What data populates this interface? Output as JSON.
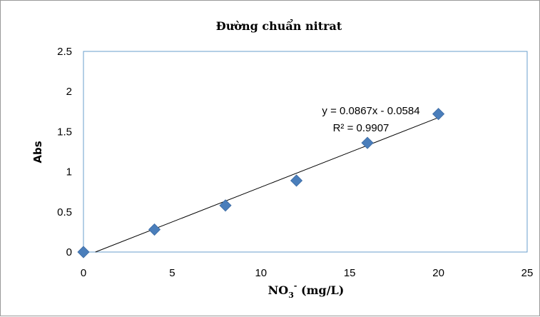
{
  "chart_data": {
    "type": "scatter",
    "title": "Đường chuẩn nitrat",
    "xlabel_main": "NO",
    "xlabel_sub": "3",
    "xlabel_sup": "-",
    "xlabel_rest": " (mg/L)",
    "ylabel": "Abs",
    "xlim": [
      0,
      25
    ],
    "ylim": [
      0,
      2.5
    ],
    "x_ticks": [
      0,
      5,
      10,
      15,
      20,
      25
    ],
    "y_ticks": [
      0,
      0.5,
      1,
      1.5,
      2,
      2.5
    ],
    "y_tick_labels": [
      "0",
      "0.5",
      "1",
      "1.5",
      "2",
      "2.5"
    ],
    "x_tick_labels": [
      "0",
      "5",
      "10",
      "15",
      "20",
      "25"
    ],
    "x": [
      0,
      4,
      8,
      12,
      16,
      20
    ],
    "y": [
      0.0,
      0.28,
      0.58,
      0.89,
      1.36,
      1.72
    ],
    "marker": "diamond",
    "marker_color": "#4a7ebb",
    "trendline": {
      "slope": 0.0867,
      "intercept": -0.0584
    },
    "equation": "y = 0.0867x - 0.0584",
    "r_squared": "R² = 0.9907",
    "plot_border_color": "#6a9fce"
  }
}
